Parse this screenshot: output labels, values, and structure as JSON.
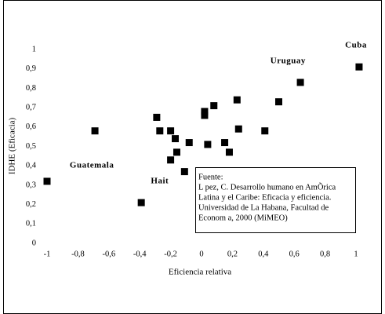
{
  "chart_data": {
    "type": "scatter",
    "x_label": "Eficiencia relativa",
    "y_label": "IDHE (Eficacia)",
    "color": "#000000",
    "x": [
      -1,
      -0.69,
      -0.39,
      -0.29,
      -0.27,
      -0.2,
      -0.2,
      -0.17,
      -0.16,
      -0.11,
      -0.08,
      0.02,
      0.02,
      0.04,
      0.08,
      0.15,
      0.18,
      0.23,
      0.24,
      0.41,
      0.5,
      0.64,
      1.02
    ],
    "values": [
      0.32,
      0.58,
      0.21,
      0.65,
      0.58,
      0.58,
      0.43,
      0.54,
      0.47,
      0.37,
      0.52,
      0.68,
      0.66,
      0.51,
      0.71,
      0.52,
      0.47,
      0.74,
      0.59,
      0.58,
      0.73,
      0.83,
      0.91
    ],
    "xlim": [
      -1,
      1
    ],
    "ylim": [
      0,
      1
    ],
    "xticks": [
      -1,
      {
        "value": -0.8,
        "label": "-0,8"
      },
      {
        "value": -0.6,
        "label": "-0,6"
      },
      {
        "value": -0.4,
        "label": "-0,4"
      },
      {
        "value": -0.2,
        "label": "-0,2"
      },
      0,
      {
        "value": 0.2,
        "label": "0,2"
      },
      {
        "value": 0.4,
        "label": "0,4"
      },
      {
        "value": 0.6,
        "label": "0,6"
      },
      {
        "value": 0.8,
        "label": "0,8"
      },
      1
    ],
    "yticks": [
      0,
      {
        "value": 0.1,
        "label": "0,1"
      },
      {
        "value": 0.2,
        "label": "0,2"
      },
      {
        "value": 0.3,
        "label": "0,3"
      },
      {
        "value": 0.4,
        "label": "0,4"
      },
      {
        "value": 0.5,
        "label": "0,5"
      },
      {
        "value": 0.6,
        "label": "0,6"
      },
      {
        "value": 0.7,
        "label": "0,7"
      },
      {
        "value": 0.8,
        "label": "0,8"
      },
      {
        "value": 0.9,
        "label": "0,9"
      },
      1
    ],
    "annotations": [
      {
        "text": "Cuba",
        "x": 1.0,
        "y": 1.02
      },
      {
        "text": "Uruguay",
        "x": 0.56,
        "y": 0.94
      },
      {
        "text": "Guatemala",
        "x": -0.71,
        "y": 0.4
      },
      {
        "text": "Hait",
        "x": -0.27,
        "y": 0.32
      }
    ],
    "source": [
      "Fuente:",
      "L  pez, C. Desarrollo humano en AmÕrica",
      "Latina y el Caribe: Eficacia y eficiencia.",
      "Universidad de La Habana, Facultad de",
      "Econom a, 2000 (MiMEO)"
    ]
  }
}
